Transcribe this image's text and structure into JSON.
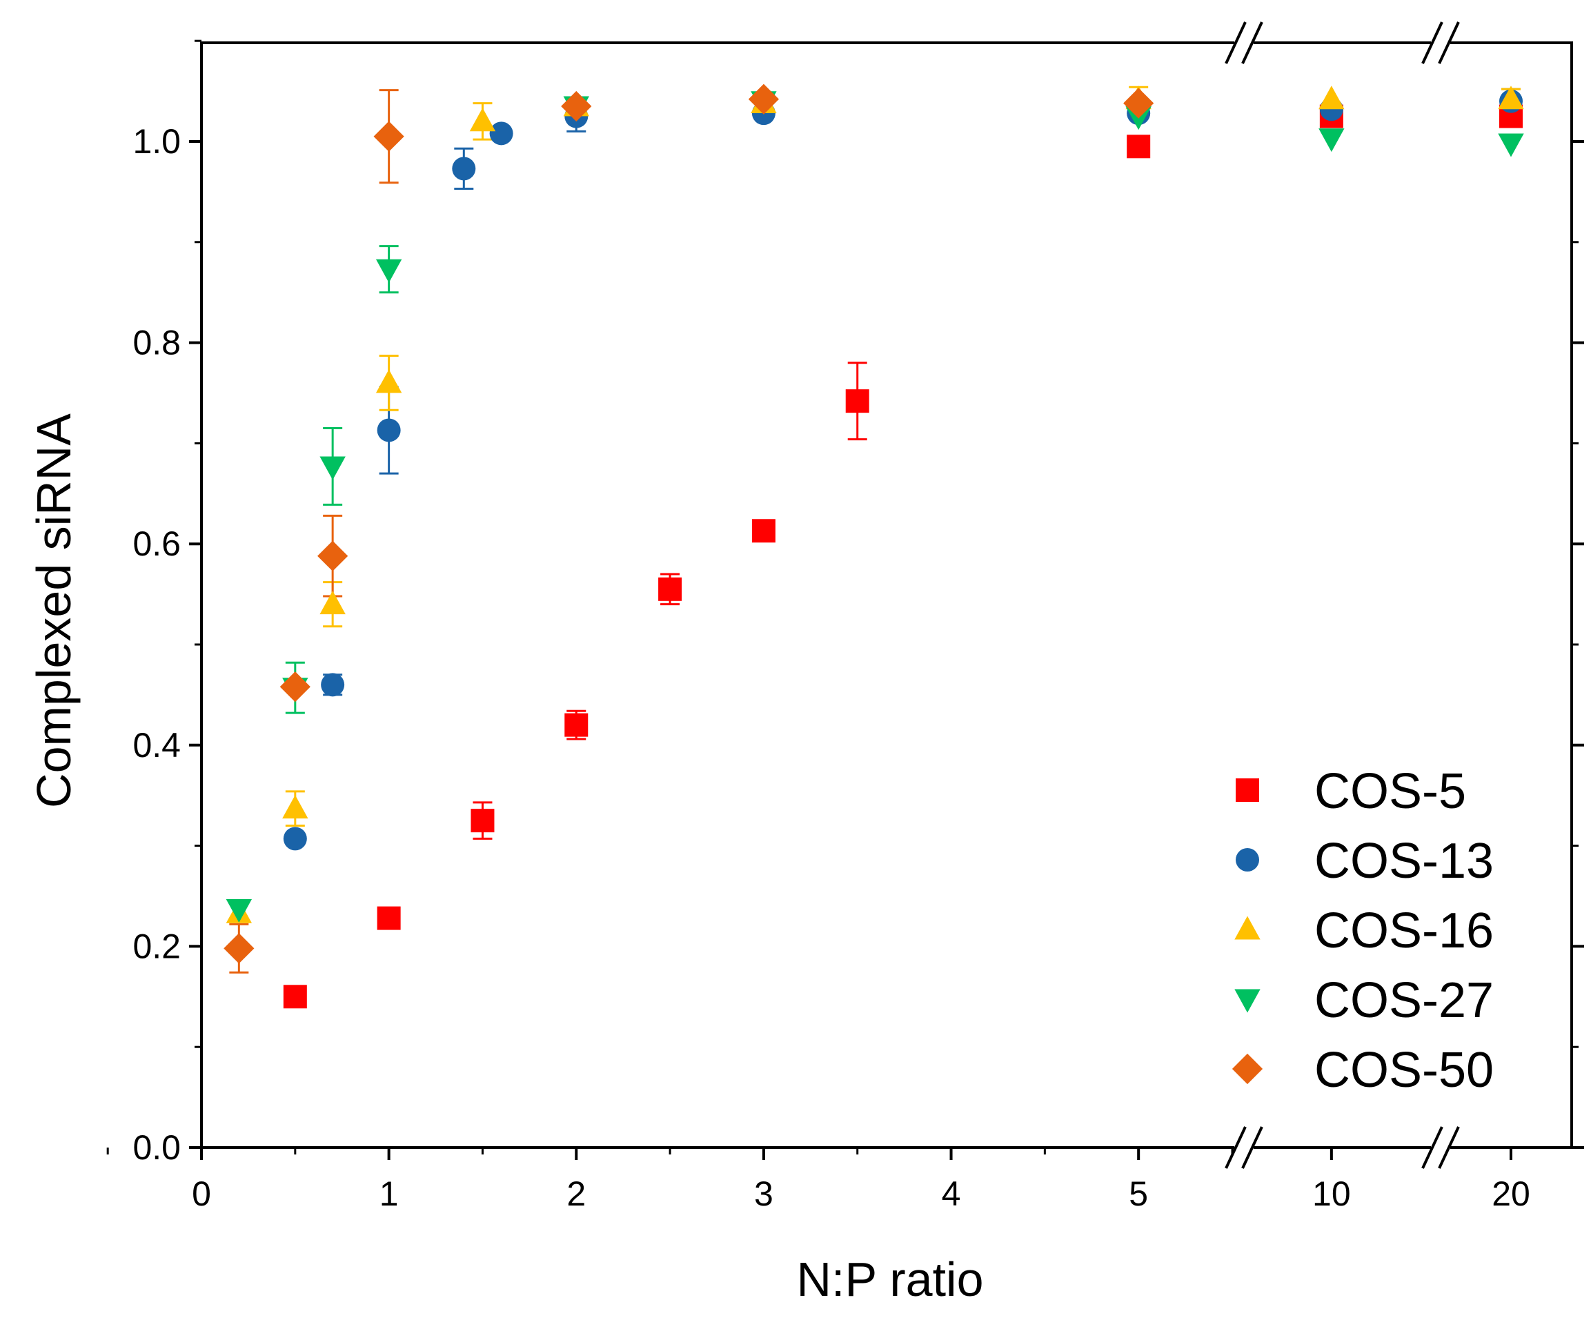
{
  "chart_data": {
    "type": "scatter",
    "xlabel": "N:P ratio",
    "ylabel": "Complexed siRNA",
    "ylim": [
      0.0,
      1.1
    ],
    "y_ticks": [
      "0.0",
      "0.2",
      "0.4",
      "0.6",
      "0.8",
      "1.0"
    ],
    "x_ticks": [
      "0",
      "1",
      "2",
      "3",
      "4",
      "5",
      "10",
      "20"
    ],
    "x_axis_breaks": [
      "5–10",
      "10–20"
    ],
    "legend_position": "bottom-right",
    "series": [
      {
        "name": "COS-5",
        "marker": "square",
        "color": "#ff0000",
        "points": [
          {
            "x": 0.5,
            "y": 0.15,
            "err": 0.0
          },
          {
            "x": 1,
            "y": 0.228,
            "err": 0.0
          },
          {
            "x": 1.5,
            "y": 0.325,
            "err": 0.018
          },
          {
            "x": 2,
            "y": 0.42,
            "err": 0.014
          },
          {
            "x": 2.5,
            "y": 0.555,
            "err": 0.015
          },
          {
            "x": 3,
            "y": 0.613,
            "err": 0.0
          },
          {
            "x": 3.5,
            "y": 0.742,
            "err": 0.038
          },
          {
            "x": 5,
            "y": 0.995,
            "err": 0.01
          },
          {
            "x": 10,
            "y": 1.025,
            "err": 0.0
          },
          {
            "x": 20,
            "y": 1.025,
            "err": 0.0
          }
        ]
      },
      {
        "name": "COS-13",
        "marker": "circle",
        "color": "#1a63a8",
        "points": [
          {
            "x": 0.5,
            "y": 0.307,
            "err": 0.0
          },
          {
            "x": 0.7,
            "y": 0.46,
            "err": 0.01
          },
          {
            "x": 1,
            "y": 0.713,
            "err": 0.043
          },
          {
            "x": 1.4,
            "y": 0.973,
            "err": 0.02
          },
          {
            "x": 1.6,
            "y": 1.008,
            "err": 0.0
          },
          {
            "x": 2,
            "y": 1.025,
            "err": 0.015
          },
          {
            "x": 3,
            "y": 1.028,
            "err": 0.0
          },
          {
            "x": 5,
            "y": 1.028,
            "err": 0.0
          },
          {
            "x": 10,
            "y": 1.032,
            "err": 0.0
          },
          {
            "x": 20,
            "y": 1.04,
            "err": 0.012
          }
        ]
      },
      {
        "name": "COS-16",
        "marker": "triangle-up",
        "color": "#ffc000",
        "points": [
          {
            "x": 0.2,
            "y": 0.233,
            "err": 0.0
          },
          {
            "x": 0.5,
            "y": 0.337,
            "err": 0.017
          },
          {
            "x": 0.7,
            "y": 0.54,
            "err": 0.022
          },
          {
            "x": 1,
            "y": 0.76,
            "err": 0.027
          },
          {
            "x": 1.5,
            "y": 1.02,
            "err": 0.018
          },
          {
            "x": 2,
            "y": 1.035,
            "err": 0.0
          },
          {
            "x": 3,
            "y": 1.038,
            "err": 0.0
          },
          {
            "x": 5,
            "y": 1.042,
            "err": 0.012
          },
          {
            "x": 10,
            "y": 1.042,
            "err": 0.0
          },
          {
            "x": 20,
            "y": 1.042,
            "err": 0.01
          }
        ]
      },
      {
        "name": "COS-27",
        "marker": "triangle-down",
        "color": "#00c060",
        "points": [
          {
            "x": 0.2,
            "y": 0.237,
            "err": 0.0
          },
          {
            "x": 0.5,
            "y": 0.457,
            "err": 0.025
          },
          {
            "x": 0.7,
            "y": 0.677,
            "err": 0.038
          },
          {
            "x": 1,
            "y": 0.873,
            "err": 0.023
          },
          {
            "x": 2,
            "y": 1.035,
            "err": 0.0
          },
          {
            "x": 3,
            "y": 1.04,
            "err": 0.0
          },
          {
            "x": 5,
            "y": 1.025,
            "err": 0.0
          },
          {
            "x": 10,
            "y": 1.003,
            "err": 0.0
          },
          {
            "x": 20,
            "y": 0.998,
            "err": 0.0
          }
        ]
      },
      {
        "name": "COS-50",
        "marker": "diamond",
        "color": "#e8620e",
        "points": [
          {
            "x": 0.2,
            "y": 0.198,
            "err": 0.024
          },
          {
            "x": 0.5,
            "y": 0.458,
            "err": 0.0
          },
          {
            "x": 0.7,
            "y": 0.588,
            "err": 0.04
          },
          {
            "x": 1,
            "y": 1.005,
            "err": 0.046
          },
          {
            "x": 2,
            "y": 1.035,
            "err": 0.0
          },
          {
            "x": 3,
            "y": 1.042,
            "err": 0.0
          },
          {
            "x": 5,
            "y": 1.038,
            "err": 0.0
          }
        ]
      }
    ]
  }
}
